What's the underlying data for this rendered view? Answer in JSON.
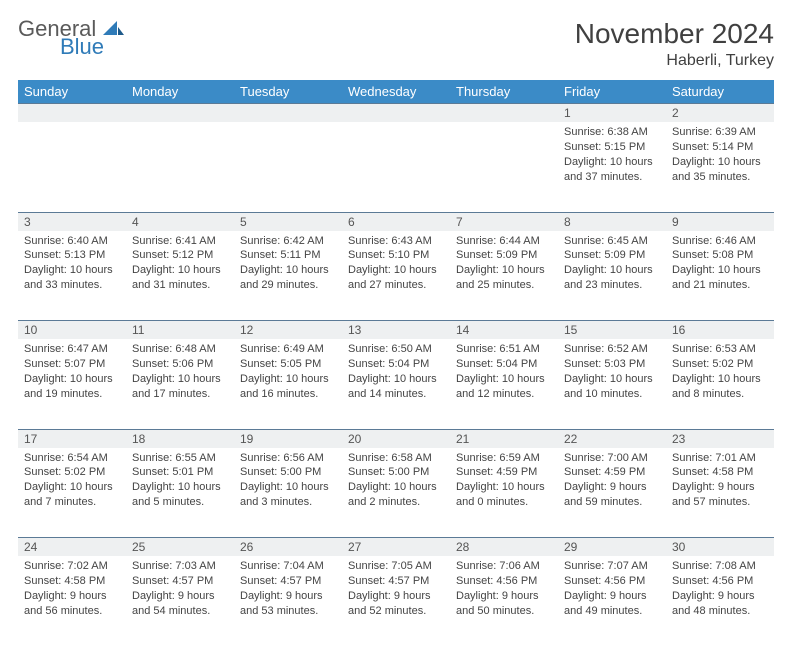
{
  "header": {
    "logo_general": "General",
    "logo_blue": "Blue",
    "month_title": "November 2024",
    "location": "Haberli, Turkey"
  },
  "colors": {
    "header_bg": "#3b8bc7",
    "header_text": "#ffffff",
    "daynum_bg": "#eef0f1",
    "cell_border": "#5b7a96",
    "body_text": "#444444",
    "title_text": "#404040",
    "logo_gray": "#5a5a5a",
    "logo_blue": "#2f7bb8"
  },
  "weekdays": [
    "Sunday",
    "Monday",
    "Tuesday",
    "Wednesday",
    "Thursday",
    "Friday",
    "Saturday"
  ],
  "layout": {
    "columns": 7,
    "rows": 5,
    "cell_font_size": 11,
    "daynum_font_size": 12,
    "header_font_size": 13,
    "title_font_size": 28,
    "location_font_size": 16
  },
  "weeks": [
    [
      {
        "n": "",
        "sun": "",
        "set": "",
        "day": ""
      },
      {
        "n": "",
        "sun": "",
        "set": "",
        "day": ""
      },
      {
        "n": "",
        "sun": "",
        "set": "",
        "day": ""
      },
      {
        "n": "",
        "sun": "",
        "set": "",
        "day": ""
      },
      {
        "n": "",
        "sun": "",
        "set": "",
        "day": ""
      },
      {
        "n": "1",
        "sun": "Sunrise: 6:38 AM",
        "set": "Sunset: 5:15 PM",
        "day": "Daylight: 10 hours and 37 minutes."
      },
      {
        "n": "2",
        "sun": "Sunrise: 6:39 AM",
        "set": "Sunset: 5:14 PM",
        "day": "Daylight: 10 hours and 35 minutes."
      }
    ],
    [
      {
        "n": "3",
        "sun": "Sunrise: 6:40 AM",
        "set": "Sunset: 5:13 PM",
        "day": "Daylight: 10 hours and 33 minutes."
      },
      {
        "n": "4",
        "sun": "Sunrise: 6:41 AM",
        "set": "Sunset: 5:12 PM",
        "day": "Daylight: 10 hours and 31 minutes."
      },
      {
        "n": "5",
        "sun": "Sunrise: 6:42 AM",
        "set": "Sunset: 5:11 PM",
        "day": "Daylight: 10 hours and 29 minutes."
      },
      {
        "n": "6",
        "sun": "Sunrise: 6:43 AM",
        "set": "Sunset: 5:10 PM",
        "day": "Daylight: 10 hours and 27 minutes."
      },
      {
        "n": "7",
        "sun": "Sunrise: 6:44 AM",
        "set": "Sunset: 5:09 PM",
        "day": "Daylight: 10 hours and 25 minutes."
      },
      {
        "n": "8",
        "sun": "Sunrise: 6:45 AM",
        "set": "Sunset: 5:09 PM",
        "day": "Daylight: 10 hours and 23 minutes."
      },
      {
        "n": "9",
        "sun": "Sunrise: 6:46 AM",
        "set": "Sunset: 5:08 PM",
        "day": "Daylight: 10 hours and 21 minutes."
      }
    ],
    [
      {
        "n": "10",
        "sun": "Sunrise: 6:47 AM",
        "set": "Sunset: 5:07 PM",
        "day": "Daylight: 10 hours and 19 minutes."
      },
      {
        "n": "11",
        "sun": "Sunrise: 6:48 AM",
        "set": "Sunset: 5:06 PM",
        "day": "Daylight: 10 hours and 17 minutes."
      },
      {
        "n": "12",
        "sun": "Sunrise: 6:49 AM",
        "set": "Sunset: 5:05 PM",
        "day": "Daylight: 10 hours and 16 minutes."
      },
      {
        "n": "13",
        "sun": "Sunrise: 6:50 AM",
        "set": "Sunset: 5:04 PM",
        "day": "Daylight: 10 hours and 14 minutes."
      },
      {
        "n": "14",
        "sun": "Sunrise: 6:51 AM",
        "set": "Sunset: 5:04 PM",
        "day": "Daylight: 10 hours and 12 minutes."
      },
      {
        "n": "15",
        "sun": "Sunrise: 6:52 AM",
        "set": "Sunset: 5:03 PM",
        "day": "Daylight: 10 hours and 10 minutes."
      },
      {
        "n": "16",
        "sun": "Sunrise: 6:53 AM",
        "set": "Sunset: 5:02 PM",
        "day": "Daylight: 10 hours and 8 minutes."
      }
    ],
    [
      {
        "n": "17",
        "sun": "Sunrise: 6:54 AM",
        "set": "Sunset: 5:02 PM",
        "day": "Daylight: 10 hours and 7 minutes."
      },
      {
        "n": "18",
        "sun": "Sunrise: 6:55 AM",
        "set": "Sunset: 5:01 PM",
        "day": "Daylight: 10 hours and 5 minutes."
      },
      {
        "n": "19",
        "sun": "Sunrise: 6:56 AM",
        "set": "Sunset: 5:00 PM",
        "day": "Daylight: 10 hours and 3 minutes."
      },
      {
        "n": "20",
        "sun": "Sunrise: 6:58 AM",
        "set": "Sunset: 5:00 PM",
        "day": "Daylight: 10 hours and 2 minutes."
      },
      {
        "n": "21",
        "sun": "Sunrise: 6:59 AM",
        "set": "Sunset: 4:59 PM",
        "day": "Daylight: 10 hours and 0 minutes."
      },
      {
        "n": "22",
        "sun": "Sunrise: 7:00 AM",
        "set": "Sunset: 4:59 PM",
        "day": "Daylight: 9 hours and 59 minutes."
      },
      {
        "n": "23",
        "sun": "Sunrise: 7:01 AM",
        "set": "Sunset: 4:58 PM",
        "day": "Daylight: 9 hours and 57 minutes."
      }
    ],
    [
      {
        "n": "24",
        "sun": "Sunrise: 7:02 AM",
        "set": "Sunset: 4:58 PM",
        "day": "Daylight: 9 hours and 56 minutes."
      },
      {
        "n": "25",
        "sun": "Sunrise: 7:03 AM",
        "set": "Sunset: 4:57 PM",
        "day": "Daylight: 9 hours and 54 minutes."
      },
      {
        "n": "26",
        "sun": "Sunrise: 7:04 AM",
        "set": "Sunset: 4:57 PM",
        "day": "Daylight: 9 hours and 53 minutes."
      },
      {
        "n": "27",
        "sun": "Sunrise: 7:05 AM",
        "set": "Sunset: 4:57 PM",
        "day": "Daylight: 9 hours and 52 minutes."
      },
      {
        "n": "28",
        "sun": "Sunrise: 7:06 AM",
        "set": "Sunset: 4:56 PM",
        "day": "Daylight: 9 hours and 50 minutes."
      },
      {
        "n": "29",
        "sun": "Sunrise: 7:07 AM",
        "set": "Sunset: 4:56 PM",
        "day": "Daylight: 9 hours and 49 minutes."
      },
      {
        "n": "30",
        "sun": "Sunrise: 7:08 AM",
        "set": "Sunset: 4:56 PM",
        "day": "Daylight: 9 hours and 48 minutes."
      }
    ]
  ]
}
